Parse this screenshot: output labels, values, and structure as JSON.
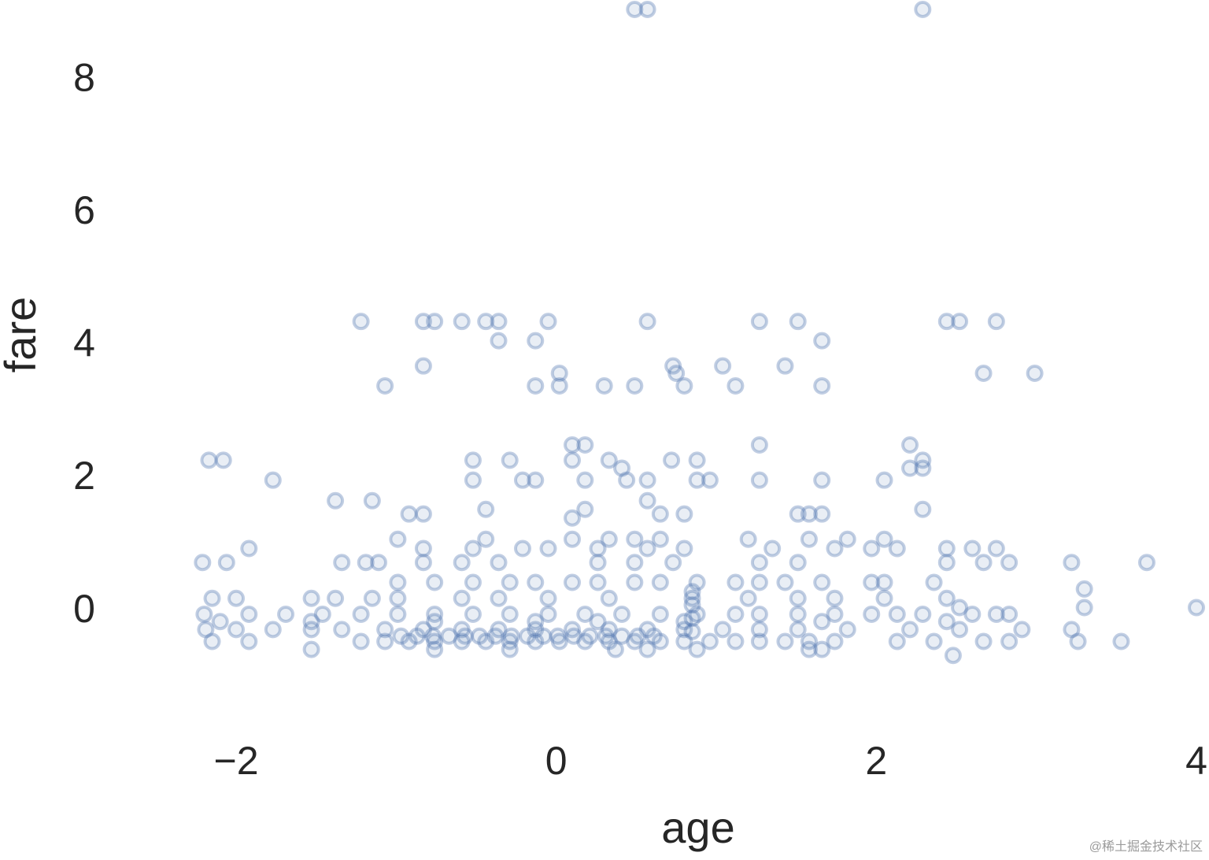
{
  "chart_data": {
    "type": "scatter",
    "x_label": "age",
    "y_label": "fare",
    "watermark": "@稀土掘金技术社区",
    "color": "#4c72b0",
    "grid": false,
    "xlim": [
      -3,
      4
    ],
    "ylim": [
      -1.7,
      9.2
    ],
    "xticks": [
      {
        "value": -2,
        "label": "−2"
      },
      0,
      2,
      4
    ],
    "yticks": [
      0,
      2,
      4,
      6,
      8
    ],
    "x": [
      0.49,
      0.57,
      2.29,
      -1.22,
      -0.83,
      -0.76,
      -0.59,
      -0.44,
      -0.36,
      -0.05,
      0.57,
      1.27,
      1.51,
      2.44,
      2.52,
      2.75,
      -0.36,
      -0.13,
      1.66,
      -0.83,
      0.73,
      1.04,
      1.43,
      0.02,
      0.75,
      2.67,
      2.99,
      -1.07,
      -0.13,
      0.02,
      0.3,
      0.49,
      0.8,
      1.12,
      1.66,
      0.1,
      0.18,
      1.27,
      2.21,
      -2.17,
      -2.08,
      -0.52,
      -0.29,
      0.1,
      0.33,
      0.72,
      0.88,
      2.29,
      0.41,
      2.21,
      2.29,
      -1.77,
      -0.52,
      -0.21,
      -0.13,
      0.18,
      0.44,
      0.57,
      0.88,
      0.96,
      1.27,
      1.66,
      2.05,
      -1.38,
      -1.15,
      0.57,
      -0.44,
      0.18,
      2.29,
      -0.92,
      -0.83,
      0.65,
      0.8,
      1.58,
      1.51,
      1.66,
      0.1,
      -0.99,
      -0.44,
      0.1,
      0.33,
      0.49,
      0.65,
      1.2,
      1.58,
      1.82,
      2.05,
      -1.92,
      -0.83,
      -0.52,
      -0.21,
      -0.05,
      0.26,
      0.57,
      0.8,
      1.35,
      1.74,
      1.97,
      2.13,
      2.44,
      2.6,
      2.75,
      -2.21,
      -2.06,
      -1.34,
      -1.19,
      -1.11,
      -0.83,
      -0.59,
      -0.36,
      0.26,
      0.49,
      0.73,
      1.27,
      1.51,
      2.44,
      3.22,
      3.69,
      2.67,
      2.83,
      -0.99,
      -0.76,
      -0.52,
      -0.29,
      -0.13,
      0.1,
      0.26,
      0.49,
      0.65,
      0.88,
      1.12,
      1.27,
      1.43,
      1.66,
      1.97,
      2.05,
      2.36,
      3.3,
      -2.15,
      -2.0,
      -1.53,
      -1.38,
      -1.15,
      -0.99,
      -0.59,
      -0.36,
      -0.05,
      0.33,
      0.85,
      1.2,
      1.51,
      1.74,
      2.05,
      2.44,
      3.3,
      4.0,
      2.52,
      -2.2,
      -1.92,
      -1.69,
      -1.46,
      -1.22,
      -0.99,
      -0.76,
      -0.52,
      -0.29,
      -0.05,
      0.18,
      0.41,
      0.65,
      0.88,
      1.12,
      1.27,
      1.51,
      1.74,
      1.97,
      2.13,
      2.29,
      2.6,
      2.75,
      2.83,
      -2.1,
      -1.53,
      -0.76,
      -0.13,
      0.26,
      0.8,
      1.66,
      2.44,
      -2.19,
      -2.0,
      -1.77,
      -1.53,
      -1.34,
      -1.07,
      -0.83,
      -0.59,
      -0.36,
      -0.13,
      0.1,
      0.33,
      0.57,
      0.8,
      1.04,
      1.27,
      1.51,
      1.82,
      2.21,
      2.52,
      2.91,
      3.22,
      -2.15,
      -1.92,
      -1.22,
      -1.07,
      -0.92,
      -0.76,
      -0.59,
      -0.44,
      -0.29,
      -0.13,
      0.02,
      0.18,
      0.33,
      0.49,
      0.65,
      0.8,
      0.96,
      1.12,
      1.27,
      1.43,
      1.58,
      1.74,
      2.13,
      2.36,
      2.67,
      2.83,
      3.26,
      3.53,
      -1.53,
      -0.76,
      -0.29,
      0.37,
      0.57,
      0.88,
      1.58,
      1.66,
      2.48,
      -0.97,
      -0.87,
      -0.77,
      -0.67,
      -0.57,
      -0.48,
      -0.38,
      -0.28,
      -0.18,
      -0.08,
      0.01,
      0.11,
      0.21,
      0.31,
      0.41,
      0.51,
      0.61,
      0.85,
      0.85,
      0.85,
      0.85
    ],
    "y": [
      9.07,
      9.07,
      9.07,
      4.37,
      4.37,
      4.37,
      4.37,
      4.37,
      4.37,
      4.37,
      4.37,
      4.37,
      4.37,
      4.37,
      4.37,
      4.37,
      4.08,
      4.08,
      4.08,
      3.7,
      3.7,
      3.7,
      3.7,
      3.59,
      3.59,
      3.59,
      3.59,
      3.4,
      3.4,
      3.4,
      3.4,
      3.4,
      3.4,
      3.4,
      3.4,
      2.51,
      2.51,
      2.51,
      2.51,
      2.28,
      2.28,
      2.28,
      2.28,
      2.28,
      2.28,
      2.28,
      2.28,
      2.28,
      2.16,
      2.16,
      2.16,
      1.98,
      1.98,
      1.98,
      1.98,
      1.98,
      1.98,
      1.98,
      1.98,
      1.98,
      1.98,
      1.98,
      1.98,
      1.67,
      1.67,
      1.67,
      1.54,
      1.54,
      1.54,
      1.47,
      1.47,
      1.47,
      1.47,
      1.47,
      1.47,
      1.47,
      1.41,
      1.09,
      1.09,
      1.09,
      1.09,
      1.09,
      1.09,
      1.09,
      1.09,
      1.09,
      1.09,
      0.95,
      0.95,
      0.95,
      0.95,
      0.95,
      0.95,
      0.95,
      0.95,
      0.95,
      0.95,
      0.95,
      0.95,
      0.95,
      0.95,
      0.95,
      0.74,
      0.74,
      0.74,
      0.74,
      0.74,
      0.74,
      0.74,
      0.74,
      0.74,
      0.74,
      0.74,
      0.74,
      0.74,
      0.74,
      0.74,
      0.74,
      0.74,
      0.74,
      0.44,
      0.44,
      0.44,
      0.44,
      0.44,
      0.44,
      0.44,
      0.44,
      0.44,
      0.44,
      0.44,
      0.44,
      0.44,
      0.44,
      0.44,
      0.44,
      0.44,
      0.34,
      0.2,
      0.2,
      0.2,
      0.2,
      0.2,
      0.2,
      0.2,
      0.2,
      0.2,
      0.2,
      0.2,
      0.2,
      0.2,
      0.2,
      0.2,
      0.2,
      0.06,
      0.06,
      0.06,
      -0.04,
      -0.04,
      -0.04,
      -0.04,
      -0.04,
      -0.04,
      -0.04,
      -0.04,
      -0.04,
      -0.04,
      -0.04,
      -0.04,
      -0.04,
      -0.04,
      -0.04,
      -0.04,
      -0.04,
      -0.04,
      -0.04,
      -0.04,
      -0.04,
      -0.04,
      -0.04,
      -0.04,
      -0.15,
      -0.15,
      -0.15,
      -0.15,
      -0.15,
      -0.15,
      -0.15,
      -0.15,
      -0.27,
      -0.27,
      -0.27,
      -0.27,
      -0.27,
      -0.27,
      -0.27,
      -0.27,
      -0.27,
      -0.27,
      -0.27,
      -0.27,
      -0.27,
      -0.27,
      -0.27,
      -0.27,
      -0.27,
      -0.27,
      -0.27,
      -0.27,
      -0.27,
      -0.27,
      -0.45,
      -0.45,
      -0.45,
      -0.45,
      -0.45,
      -0.45,
      -0.45,
      -0.45,
      -0.45,
      -0.45,
      -0.45,
      -0.45,
      -0.45,
      -0.45,
      -0.45,
      -0.45,
      -0.45,
      -0.45,
      -0.45,
      -0.45,
      -0.45,
      -0.45,
      -0.45,
      -0.45,
      -0.45,
      -0.45,
      -0.45,
      -0.45,
      -0.57,
      -0.57,
      -0.57,
      -0.57,
      -0.57,
      -0.57,
      -0.57,
      -0.57,
      -0.66,
      -0.37,
      -0.37,
      -0.37,
      -0.37,
      -0.37,
      -0.37,
      -0.37,
      -0.37,
      -0.37,
      -0.37,
      -0.37,
      -0.37,
      -0.37,
      -0.37,
      -0.37,
      -0.37,
      -0.37,
      0.3,
      0.1,
      -0.1,
      -0.3
    ]
  }
}
